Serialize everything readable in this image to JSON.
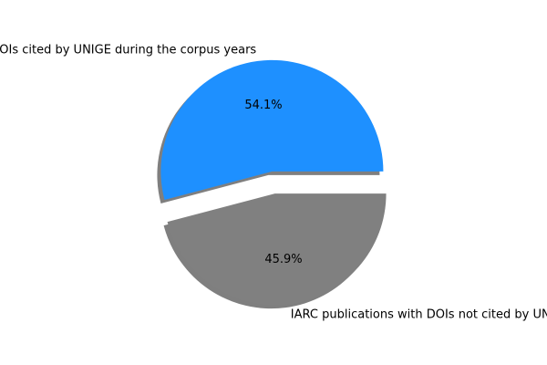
{
  "chart_data": {
    "type": "pie",
    "slices": [
      {
        "label": "IARC publications with DOIs cited by UNIGE during the corpus years",
        "value": 54.1,
        "pct_label": "54.1%",
        "color": "#1e90ff",
        "explode": 0.1
      },
      {
        "label": "IARC publications with DOIs not cited by UNIGE during the corpus years",
        "value": 45.9,
        "pct_label": "45.9%",
        "color": "#808080",
        "explode": 0.1
      }
    ],
    "shadow": true,
    "start_angle_deg": 0
  }
}
